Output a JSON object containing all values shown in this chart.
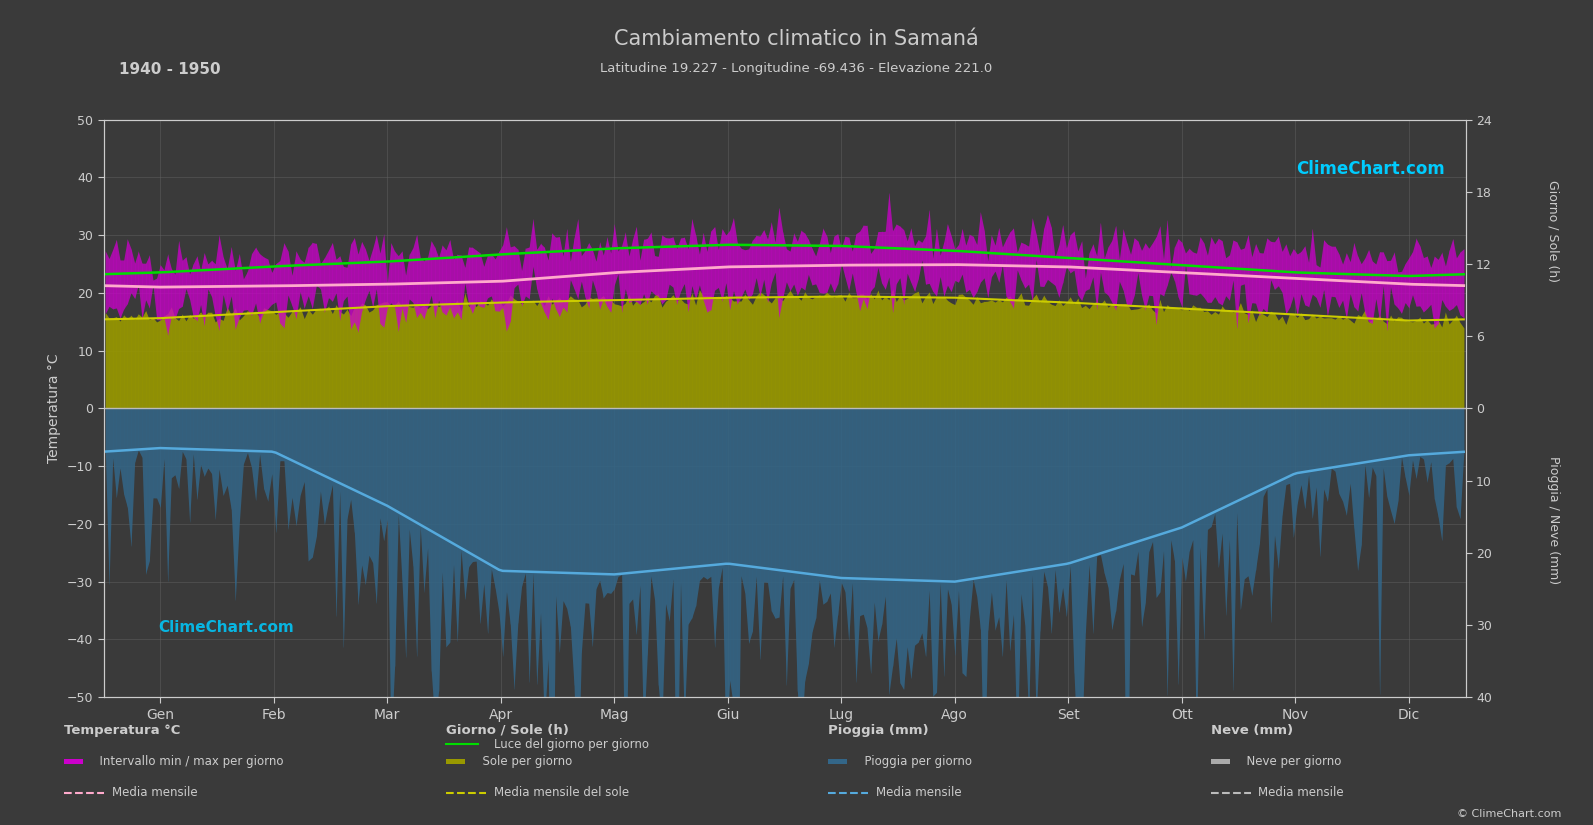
{
  "title": "Cambiamento climatico in Samaná",
  "subtitle": "Latitudine 19.227 - Longitudine -69.436 - Elevazione 221.0",
  "year_range": "1940 - 1950",
  "bg_color": "#3a3a3a",
  "plot_bg_color": "#3a3a3a",
  "months": [
    "Gen",
    "Feb",
    "Mar",
    "Apr",
    "Mag",
    "Giu",
    "Lug",
    "Ago",
    "Set",
    "Ott",
    "Nov",
    "Dic"
  ],
  "temp_ylim": [
    -50,
    50
  ],
  "temp_mean": [
    21.0,
    21.2,
    21.5,
    22.0,
    23.5,
    24.5,
    24.8,
    24.9,
    24.5,
    23.5,
    22.5,
    21.5
  ],
  "temp_max_mean": [
    26.0,
    26.5,
    27.0,
    27.5,
    28.8,
    29.2,
    29.5,
    29.8,
    29.2,
    28.2,
    27.0,
    26.5
  ],
  "temp_min_mean": [
    17.0,
    17.0,
    17.5,
    18.0,
    19.5,
    20.5,
    21.0,
    21.2,
    20.8,
    19.8,
    18.5,
    17.5
  ],
  "daylight_hours": [
    11.3,
    11.8,
    12.2,
    12.8,
    13.3,
    13.6,
    13.5,
    13.1,
    12.5,
    11.9,
    11.3,
    11.0
  ],
  "sunshine_hours": [
    7.5,
    8.0,
    8.5,
    8.8,
    9.0,
    9.2,
    9.3,
    9.2,
    8.8,
    8.3,
    7.8,
    7.3
  ],
  "rainfall_mean": [
    5.5,
    6.0,
    13.5,
    22.5,
    23.0,
    21.5,
    23.5,
    24.0,
    21.5,
    16.5,
    9.0,
    6.5
  ],
  "temp_max_daily_noise": 2.0,
  "temp_min_daily_noise": 2.0,
  "rain_daily_max": 60.0,
  "sun_scale": 2.0833,
  "rain_scale": 1.25,
  "temp_area_color": "#cc00cc",
  "sun_area_color": "#999900",
  "rain_area_color": "#336688",
  "snow_area_color": "#aaaaaa",
  "daylight_line_color": "#00dd00",
  "temp_mean_line_color": "#ffaacc",
  "sunshine_mean_line_color": "#cccc00",
  "rain_mean_line_color": "#55aadd",
  "grid_color": "#666666",
  "text_color": "#cccccc",
  "watermark_text": "ClimeChart.com",
  "watermark_color": "#00ccff",
  "copyright_text": "© ClimeChart.com",
  "sun_ticks": [
    0,
    6,
    12,
    18,
    24
  ],
  "rain_ticks": [
    0,
    10,
    20,
    30,
    40
  ],
  "left_ticks": [
    -50,
    -40,
    -30,
    -20,
    -10,
    0,
    10,
    20,
    30,
    40,
    50
  ]
}
